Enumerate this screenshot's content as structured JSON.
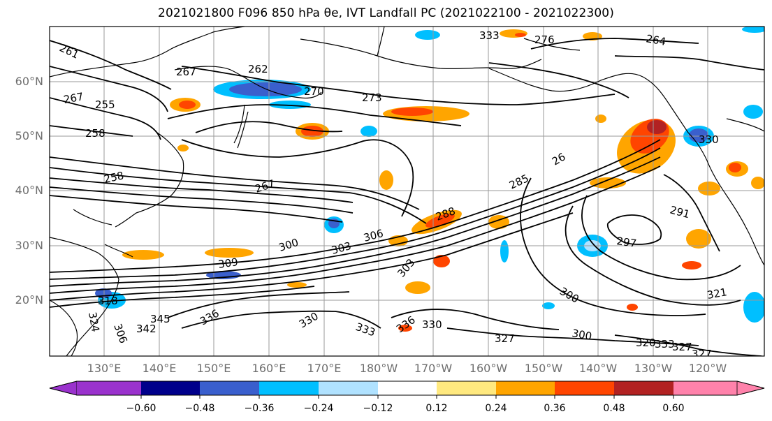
{
  "title": "2021021800 F096 850 hPa θe, IVT Landfall PC (2021022100 - 2021022300)",
  "map": {
    "lat_labels": [
      "60°N",
      "50°N",
      "40°N",
      "30°N",
      "20°N"
    ],
    "lon_labels": [
      "130°E",
      "140°E",
      "150°E",
      "160°E",
      "170°E",
      "180°W",
      "170°W",
      "160°W",
      "150°W",
      "140°W",
      "130°W",
      "120°W"
    ],
    "contour_labels": [
      "261",
      "267",
      "255",
      "258",
      "267",
      "262",
      "270",
      "273",
      "276",
      "264",
      "258",
      "267",
      "26",
      "285",
      "288",
      "291",
      "297",
      "300",
      "303",
      "306",
      "309",
      "303",
      "300",
      "300",
      "321",
      "318",
      "324",
      "306",
      "342",
      "345",
      "336",
      "330",
      "333",
      "336",
      "330",
      "327",
      "320",
      "333",
      "327",
      "327",
      "330",
      "333",
      "336",
      "29"
    ]
  },
  "colorbar": {
    "colors": [
      "#9a32cd",
      "#00008b",
      "#3a5fcd",
      "#00bfff",
      "#b0e2ff",
      "#ffffff",
      "#ffe97f",
      "#ffa500",
      "#ff4500",
      "#b22222",
      "#ff82ab"
    ],
    "ticks": [
      "−0.60",
      "−0.48",
      "−0.36",
      "−0.24",
      "−0.12",
      "0.12",
      "0.24",
      "0.36",
      "0.48",
      "0.60"
    ]
  }
}
